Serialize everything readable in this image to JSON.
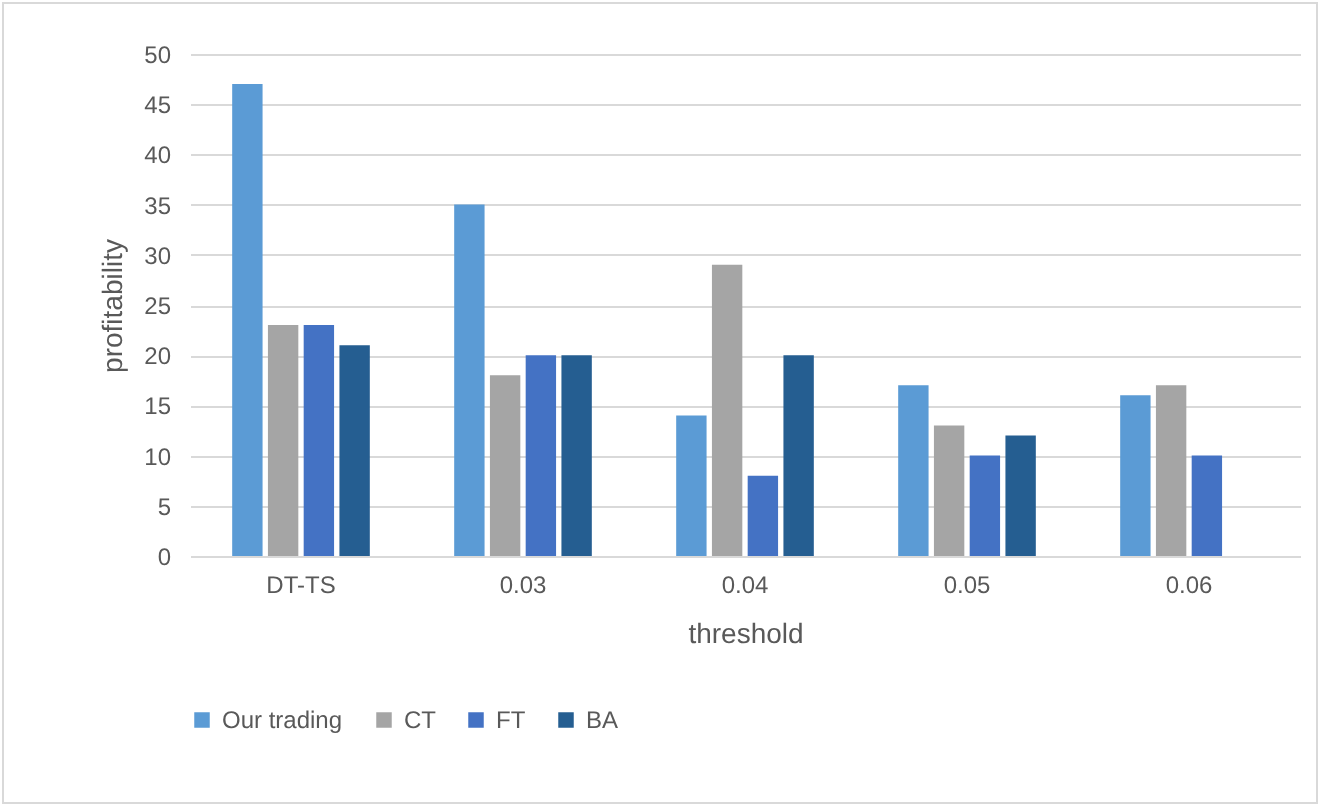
{
  "chart_data": {
    "type": "bar",
    "xlabel": "threshold",
    "ylabel": "profitability",
    "categories": [
      "DT-TS",
      "0.03",
      "0.04",
      "0.05",
      "0.06"
    ],
    "series": [
      {
        "name": "Our trading",
        "color": "#5b9bd5",
        "values": [
          47,
          35,
          14,
          17,
          16
        ]
      },
      {
        "name": "CT",
        "color": "#a5a5a5",
        "values": [
          23,
          18,
          29,
          13,
          17
        ]
      },
      {
        "name": "FT",
        "color": "#4472c4",
        "values": [
          23,
          20,
          8,
          10,
          10
        ]
      },
      {
        "name": "BA",
        "color": "#255e91",
        "values": [
          21,
          20,
          20,
          12,
          null
        ]
      }
    ],
    "ylim": [
      0,
      50
    ],
    "yticks": [
      0,
      5,
      10,
      15,
      20,
      25,
      30,
      35,
      40,
      45,
      50
    ],
    "grid": "y",
    "legend": "bottom"
  }
}
